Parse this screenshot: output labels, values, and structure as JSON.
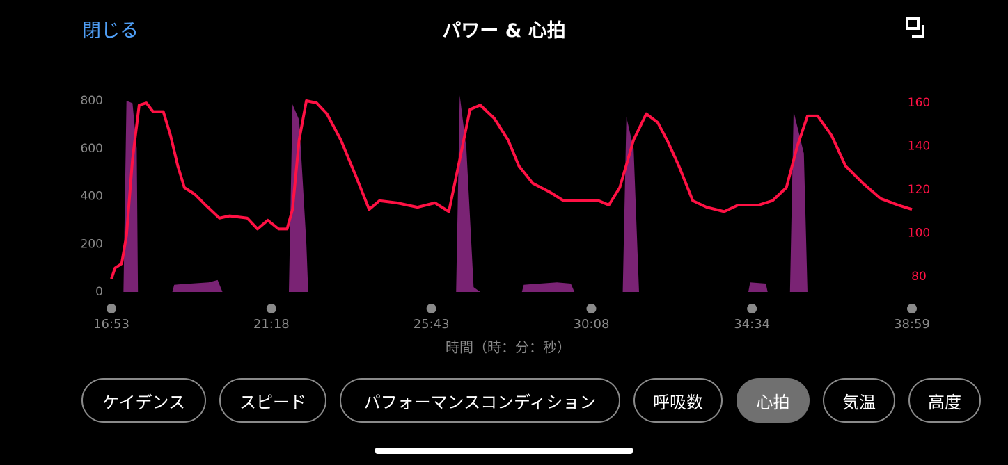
{
  "header": {
    "close": "閉じる",
    "title": "パワー & 心拍"
  },
  "chart_data": {
    "type": "area-line",
    "xlabel": "時間（時：分：秒）",
    "xlim": [
      1013,
      2339
    ],
    "xticks": [
      {
        "value": 1013,
        "label": "16:53"
      },
      {
        "value": 1278,
        "label": "21:18"
      },
      {
        "value": 1543,
        "label": "25:43"
      },
      {
        "value": 1808,
        "label": "30:08"
      },
      {
        "value": 2074,
        "label": "34:34"
      },
      {
        "value": 2339,
        "label": "38:59"
      }
    ],
    "ylim": [
      0,
      800
    ],
    "yticks": [
      0,
      200,
      400,
      600,
      800
    ],
    "y2lim": [
      73,
      161
    ],
    "y2ticks": [
      80,
      100,
      120,
      140,
      160
    ],
    "series": [
      {
        "kind": "area",
        "axis": "y",
        "color": "#7a2374",
        "x": [
          1013,
          1033,
          1038,
          1048,
          1055,
          1057,
          1114,
          1117,
          1174,
          1189,
          1197,
          1307,
          1313,
          1324,
          1336,
          1339,
          1584,
          1590,
          1601,
          1613,
          1624,
          1693,
          1696,
          1751,
          1774,
          1780,
          1860,
          1866,
          1878,
          1887,
          2068,
          2071,
          2097,
          2100,
          2137,
          2143,
          2160,
          2166,
          2339
        ],
        "values": [
          0,
          0,
          800,
          790,
          600,
          0,
          0,
          30,
          40,
          50,
          0,
          0,
          785,
          720,
          200,
          0,
          0,
          823,
          600,
          20,
          0,
          0,
          30,
          40,
          35,
          0,
          0,
          733,
          600,
          0,
          0,
          40,
          35,
          0,
          0,
          756,
          580,
          0,
          0
        ]
      },
      {
        "kind": "line",
        "axis": "y2",
        "color": "#ff1144",
        "x": [
          1013,
          1019,
          1030,
          1038,
          1048,
          1059,
          1071,
          1082,
          1099,
          1111,
          1123,
          1134,
          1151,
          1169,
          1192,
          1209,
          1238,
          1255,
          1272,
          1290,
          1304,
          1313,
          1324,
          1336,
          1353,
          1370,
          1393,
          1417,
          1440,
          1457,
          1486,
          1520,
          1549,
          1572,
          1590,
          1607,
          1624,
          1647,
          1670,
          1688,
          1711,
          1739,
          1762,
          1797,
          1820,
          1837,
          1855,
          1878,
          1899,
          1918,
          1935,
          1953,
          1976,
          1999,
          2028,
          2051,
          2085,
          2108,
          2131,
          2149,
          2166,
          2183,
          2206,
          2229,
          2258,
          2287,
          2316,
          2339
        ],
        "values": [
          79,
          84,
          86,
          99,
          134,
          159,
          160,
          156,
          156,
          145,
          131,
          121,
          118,
          113,
          107,
          108,
          107,
          102,
          106,
          102,
          102,
          111,
          143,
          161,
          160,
          155,
          143,
          127,
          111,
          115,
          114,
          112,
          114,
          110,
          134,
          157,
          159,
          153,
          143,
          131,
          123,
          119,
          115,
          115,
          115,
          113,
          121,
          143,
          155,
          151,
          142,
          131,
          115,
          112,
          110,
          113,
          113,
          115,
          121,
          140,
          154,
          154,
          145,
          131,
          123,
          116,
          113,
          111
        ]
      }
    ]
  },
  "tabs": {
    "items": [
      "ケイデンス",
      "スピード",
      "パフォーマンスコンディション",
      "呼吸数",
      "心拍",
      "気温",
      "高度"
    ],
    "selected_index": 4
  }
}
